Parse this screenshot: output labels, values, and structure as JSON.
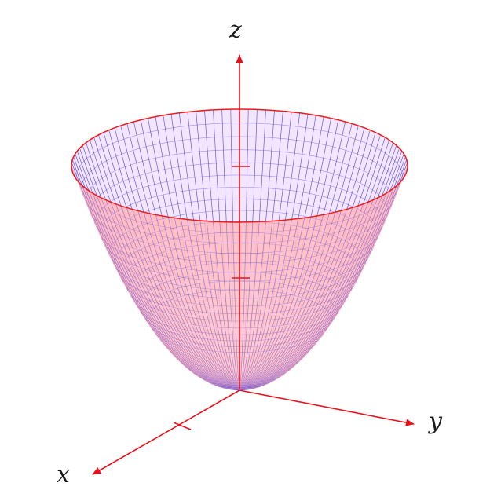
{
  "figure": {
    "surface": "paraboloid",
    "colors": {
      "axis": "#e8111b",
      "mesh_inner": "#3b2bd6",
      "mesh_outer": "#ff9aa6",
      "rim": "#ef1a1a",
      "bottom_fill": "#ffc9cf"
    },
    "axes": {
      "x_label": "x",
      "y_label": "y",
      "z_label": "z"
    }
  }
}
